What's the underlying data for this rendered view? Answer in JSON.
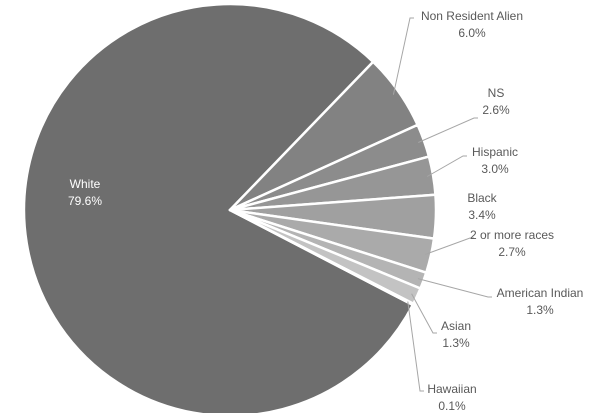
{
  "chart_data": {
    "type": "pie",
    "title": "",
    "legend": "none",
    "slices": [
      {
        "label": "White",
        "value_label": "79.6%",
        "value": 79.6,
        "color": "#6e6e6e"
      },
      {
        "label": "Non Resident Alien",
        "value_label": "6.0%",
        "value": 6.0,
        "color": "#828282"
      },
      {
        "label": "NS",
        "value_label": "2.6%",
        "value": 2.6,
        "color": "#8c8c8c"
      },
      {
        "label": "Hispanic",
        "value_label": "3.0%",
        "value": 3.0,
        "color": "#969696"
      },
      {
        "label": "Black",
        "value_label": "3.4%",
        "value": 3.4,
        "color": "#a0a0a0"
      },
      {
        "label": "2 or more races",
        "value_label": "2.7%",
        "value": 2.7,
        "color": "#aaaaaa"
      },
      {
        "label": "American Indian",
        "value_label": "1.3%",
        "value": 1.3,
        "color": "#b4b4b4"
      },
      {
        "label": "Asian",
        "value_label": "1.3%",
        "value": 1.3,
        "color": "#c3c3c3"
      },
      {
        "label": "Hawaiian",
        "value_label": "0.1%",
        "value": 0.1,
        "color": "#d2d2d2"
      }
    ]
  }
}
